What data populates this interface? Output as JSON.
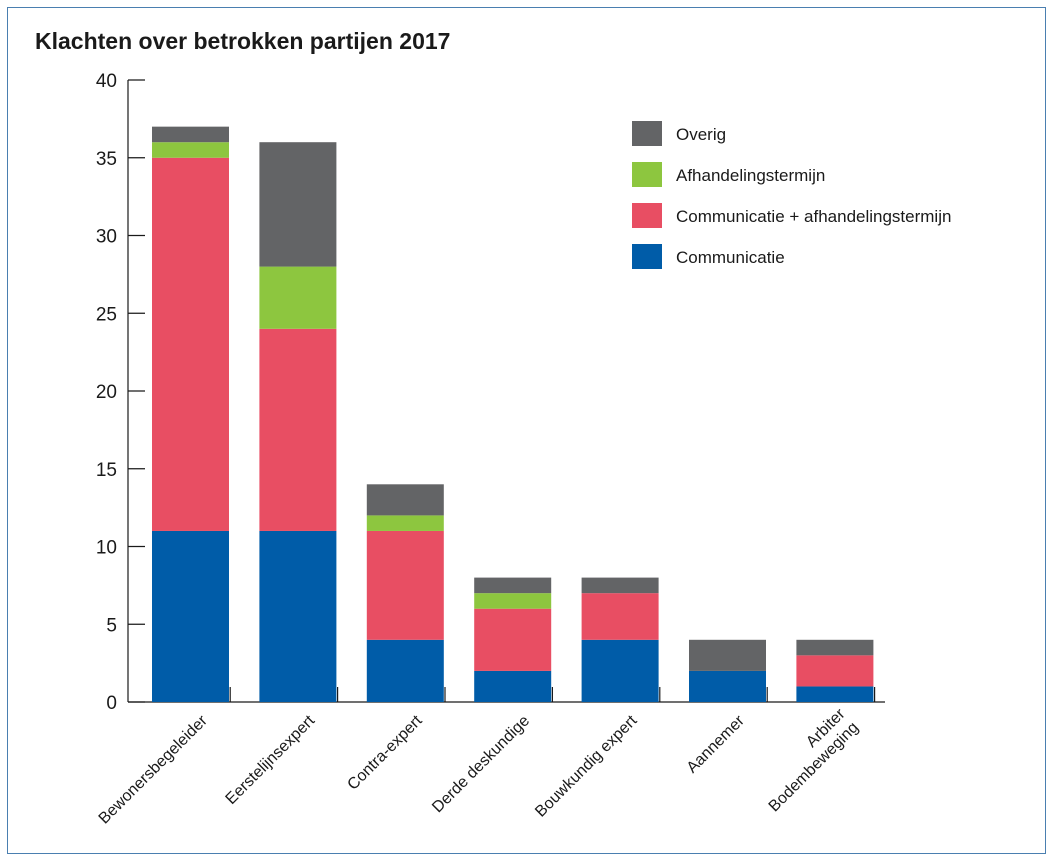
{
  "chart_data": {
    "type": "bar",
    "stacked": true,
    "title": "Klachten over betrokken partijen 2017",
    "xlabel": "",
    "ylabel": "",
    "ylim": [
      0,
      40
    ],
    "yticks": [
      0,
      5,
      10,
      15,
      20,
      25,
      30,
      35,
      40
    ],
    "grid": false,
    "legend_position": "top-right",
    "categories": [
      [
        "Bewonersbegeleider"
      ],
      [
        "Eerstelijnsexpert"
      ],
      [
        "Contra-expert"
      ],
      [
        "Derde deskundige"
      ],
      [
        "Bouwkundig expert"
      ],
      [
        "Aannemer"
      ],
      [
        "Arbiter",
        "Bodembeweging"
      ]
    ],
    "series": [
      {
        "name": "Communicatie",
        "color": "#005ca8",
        "values": [
          11,
          11,
          4,
          2,
          4,
          2,
          1
        ]
      },
      {
        "name": "Communicatie + afhandelingstermijn",
        "color": "#e84e63",
        "values": [
          24,
          13,
          7,
          4,
          3,
          0,
          2
        ]
      },
      {
        "name": "Afhandelingstermijn",
        "color": "#8dc63f",
        "values": [
          1,
          4,
          1,
          1,
          0,
          0,
          0
        ]
      },
      {
        "name": "Overig",
        "color": "#636466",
        "values": [
          1,
          8,
          2,
          1,
          1,
          2,
          1
        ]
      }
    ],
    "legend_order": [
      "Overig",
      "Afhandelingstermijn",
      "Communicatie + afhandelingstermijn",
      "Communicatie"
    ]
  }
}
